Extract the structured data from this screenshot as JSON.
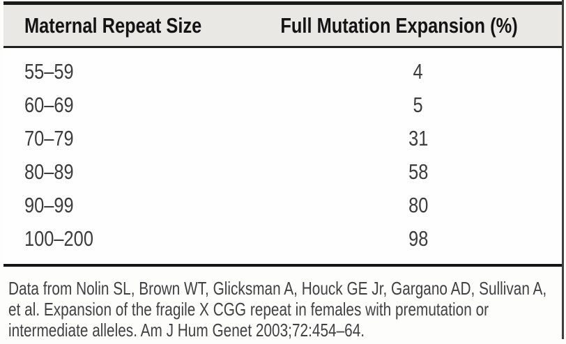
{
  "chart_data": {
    "type": "table",
    "columns": [
      "Maternal Repeat Size",
      "Full Mutation Expansion (%)"
    ],
    "rows": [
      [
        "55–59",
        "4"
      ],
      [
        "60–69",
        "5"
      ],
      [
        "70–79",
        "31"
      ],
      [
        "80–89",
        "58"
      ],
      [
        "90–99",
        "80"
      ],
      [
        "100–200",
        "98"
      ]
    ],
    "title": "",
    "footnote": "Data from Nolin SL, Brown WT, Glicksman A, Houck GE Jr, Gargano AD, Sullivan A, et al. Expansion of the fragile X CGG repeat in females with premutation or intermediate alleles. Am J Hum Genet 2003;72:454–64.",
    "layout": {
      "header_background": "#e9e8e5",
      "rule_color": "#1a1a1a",
      "value_column_alignment": "center",
      "grid": "off"
    }
  },
  "figure": {
    "footnote": "Data from Nolin SL, Brown WT, Glicksman A, Houck GE Jr, Gargano AD, Sullivan A, et al. Expansion of the fragile X CGG repeat in females with premutation or intermediate alleles. Am J Hum Genet 2003;72:454–64."
  },
  "colors": {
    "header_bg": "#e9e8e5",
    "rule": "#1a1a1a",
    "header_text": "#141414",
    "body_text": "#3c3c3c",
    "footnote_text": "#414141",
    "page_bg": "#fdfdfc"
  }
}
